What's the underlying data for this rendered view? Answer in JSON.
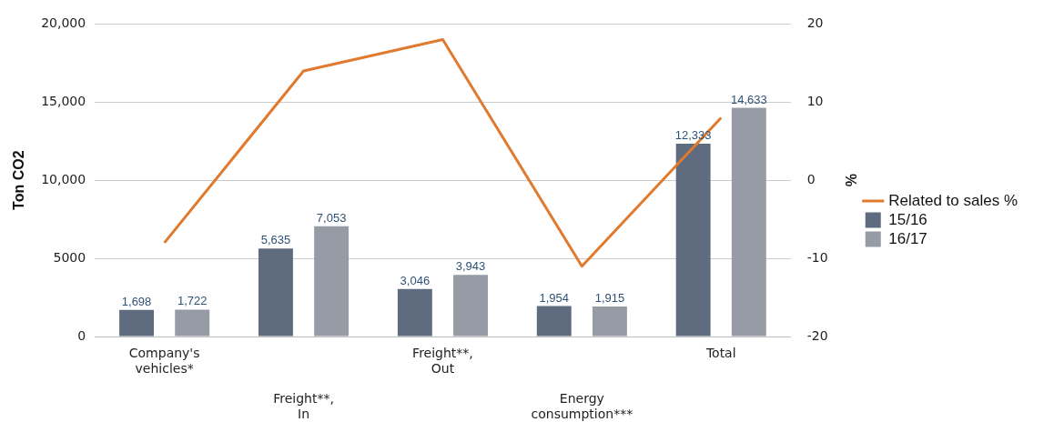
{
  "chart_data": {
    "type": "bar",
    "categories": [
      "Company's vehicles*",
      "Freight**, In",
      "Freight**, Out",
      "Energy consumption***",
      "Total"
    ],
    "ylabel": "Ton CO2",
    "y2label": "%",
    "ylim": [
      0,
      20000
    ],
    "yticks": [
      0,
      5000,
      {
        "value": 10000,
        "label": "10,000"
      },
      {
        "value": 15000,
        "label": "15,000"
      },
      {
        "value": 20000,
        "label": "20,000"
      }
    ],
    "y2lim": [
      -20,
      20
    ],
    "y2ticks": [
      -20,
      -10,
      0,
      10,
      20
    ],
    "series": [
      {
        "name": "15/16",
        "color": "#5f6b7e",
        "values": [
          1698,
          5635,
          3046,
          1954,
          12333
        ],
        "value_labels": [
          "1,698",
          "5,635",
          "3,046",
          "1,954",
          "12,333"
        ]
      },
      {
        "name": "16/17",
        "color": "#979ba6",
        "values": [
          1722,
          7053,
          3943,
          1915,
          14633
        ],
        "value_labels": [
          "1,722",
          "7,053",
          "3,943",
          "1,915",
          "14,633"
        ]
      },
      {
        "name": "Related to sales %",
        "type": "line",
        "axis": "y2",
        "color": "#e07a2e",
        "values": [
          -8,
          14,
          18,
          -11,
          8
        ]
      }
    ],
    "grid": "y",
    "legend": "right",
    "marker": "none"
  }
}
